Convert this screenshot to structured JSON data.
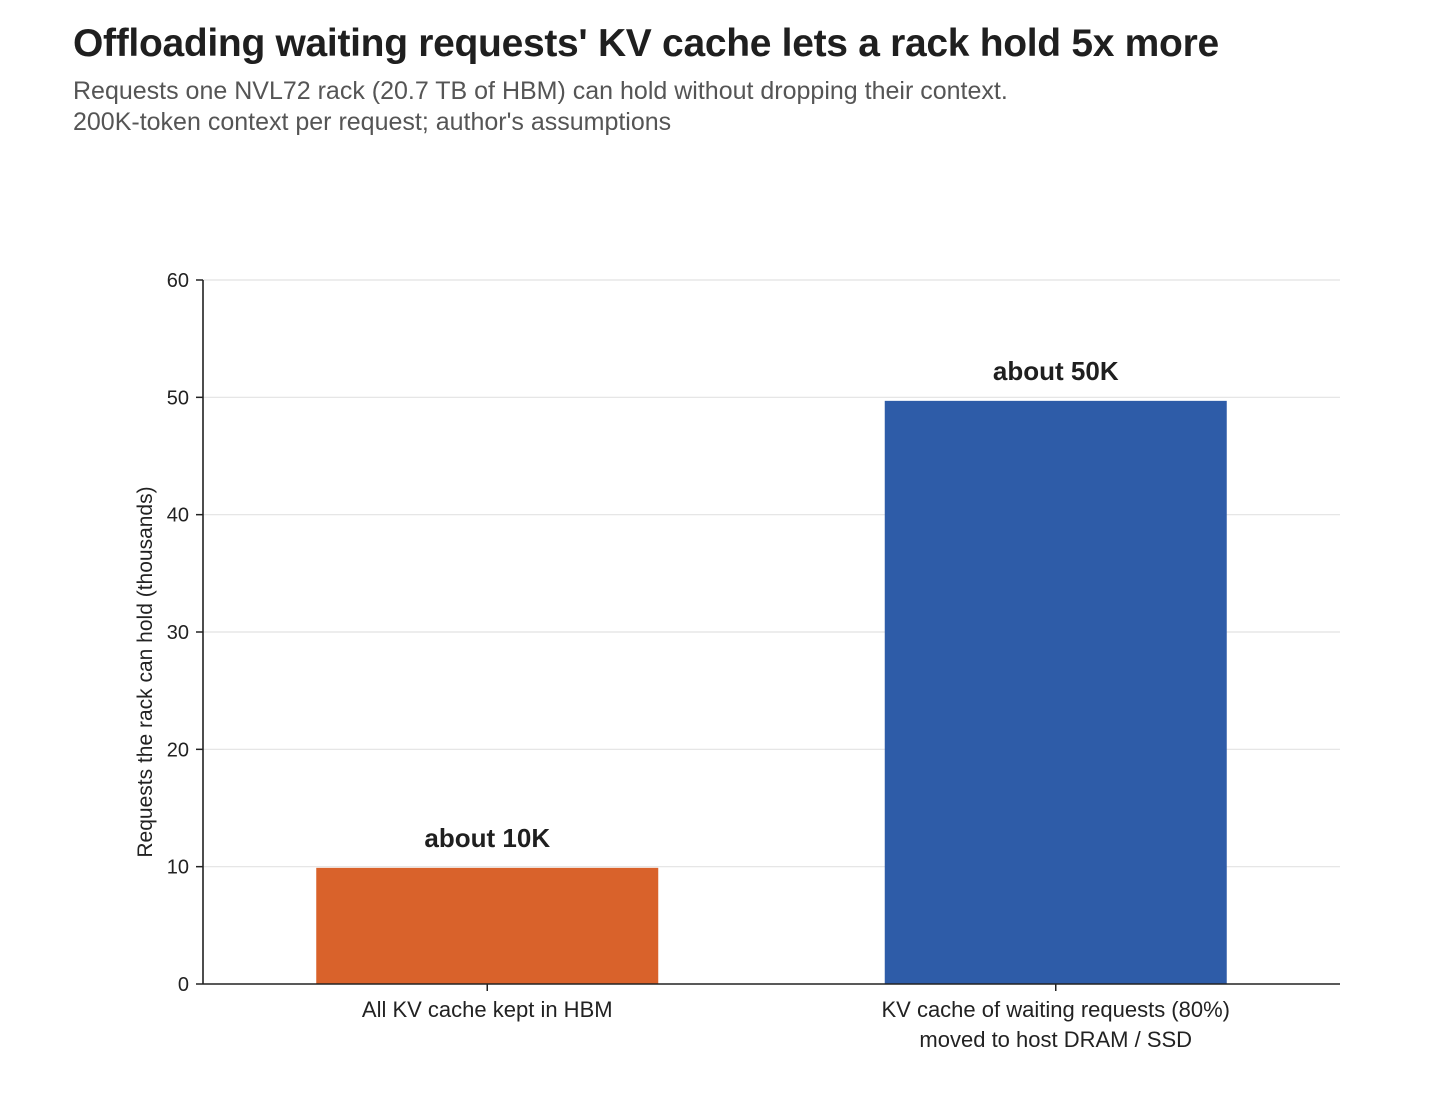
{
  "header": {
    "title": "Offloading waiting requests' KV cache lets a rack hold 5x more",
    "subtitle_lines": [
      "Requests one NVL72 rack (20.7 TB of HBM) can hold without dropping their context.",
      "200K-token context per request; author's assumptions"
    ]
  },
  "chart_data": {
    "type": "bar",
    "title": "Offloading waiting requests' KV cache lets a rack hold 5x more",
    "subtitle": "Requests one NVL72 rack (20.7 TB of HBM) can hold without dropping their context. 200K-token context per request; author's assumptions",
    "categories": [
      [
        "All KV cache kept in HBM"
      ],
      [
        "KV cache of waiting requests (80%)",
        "moved to host DRAM / SSD"
      ]
    ],
    "values": [
      9.9,
      49.7
    ],
    "data_labels": [
      "about 10K",
      "about 50K"
    ],
    "colors": [
      "#d9622b",
      "#2e5ca8"
    ],
    "xlabel": "",
    "ylabel": "Requests the rack can hold (thousands)",
    "ylim": [
      0,
      60
    ],
    "yticks": [
      0,
      10,
      20,
      30,
      40,
      50,
      60
    ],
    "grid": true,
    "legend": "none"
  }
}
